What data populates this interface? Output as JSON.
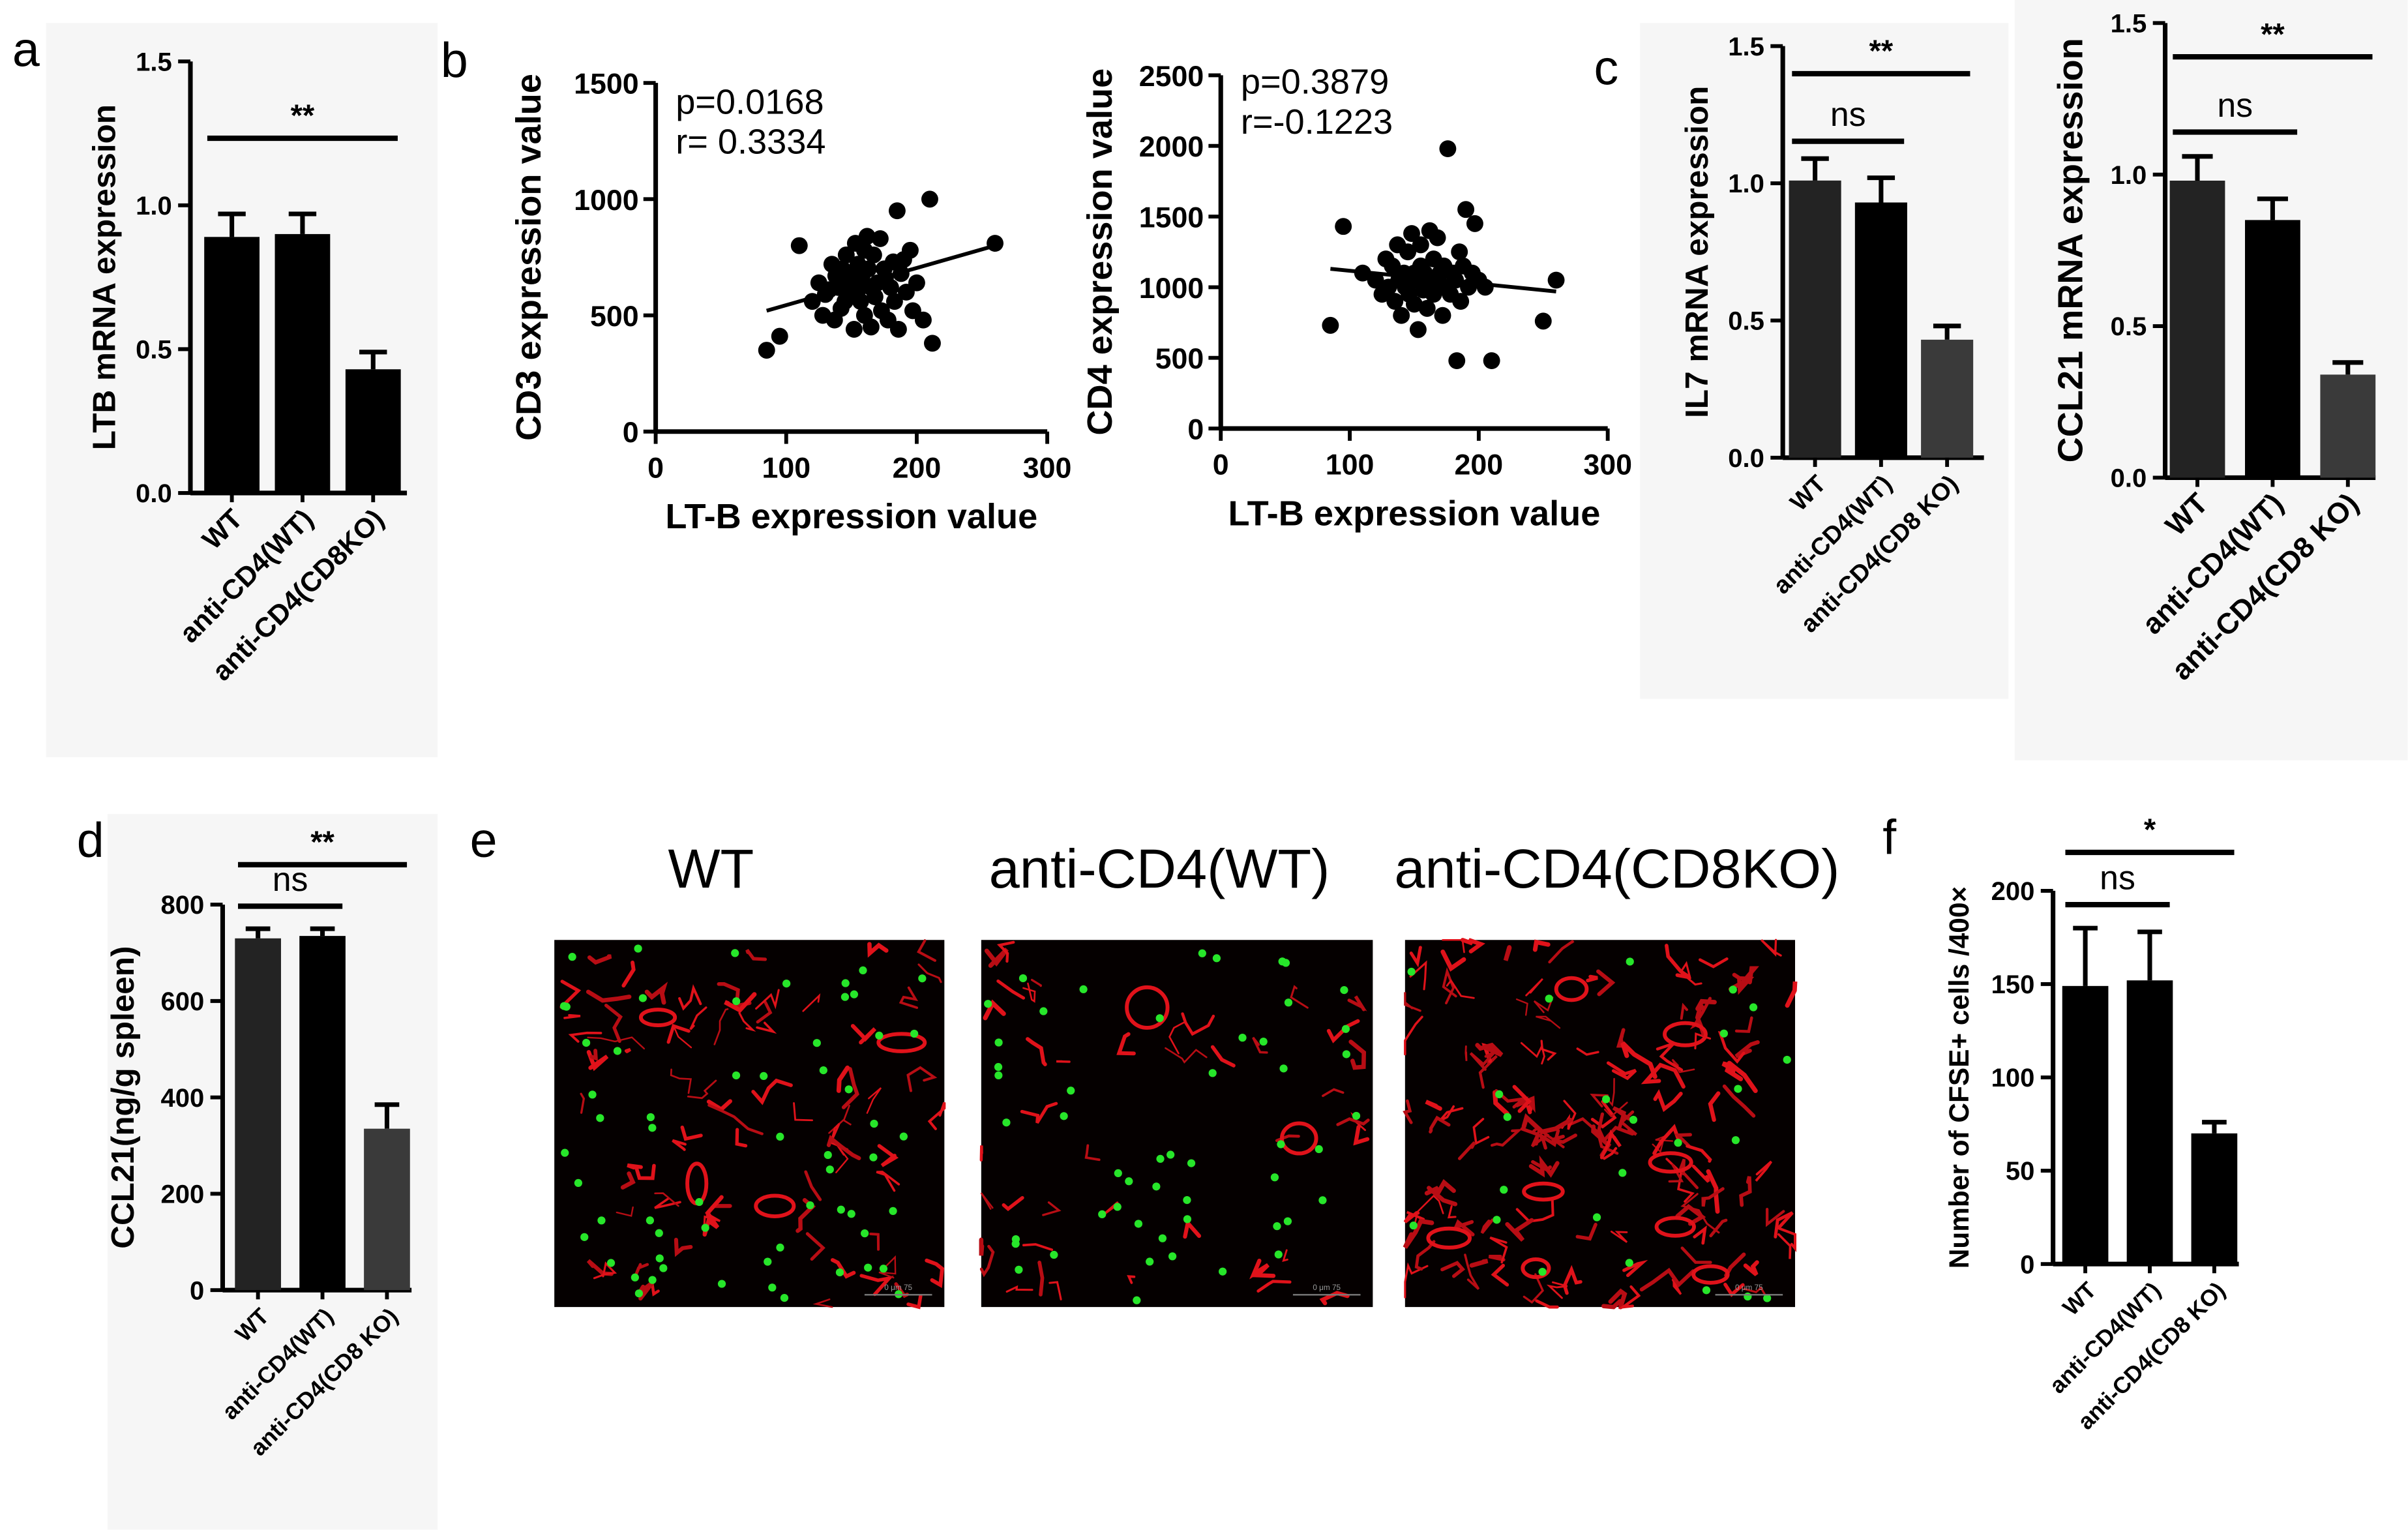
{
  "panels": {
    "a": "a",
    "b": "b",
    "c": "c",
    "d": "d",
    "e": "e",
    "f": "f"
  },
  "colors": {
    "black_bar": "#000000",
    "dark_bar": "#222222",
    "grey_bar": "#3a3a3a",
    "panel_bg": "#f5f5f5"
  },
  "chart_data": [
    {
      "id": "a",
      "type": "bar",
      "categories": [
        "WT",
        "anti-CD4(WT)",
        "anti-CD4(CD8KO)"
      ],
      "values": [
        0.89,
        0.9,
        0.43
      ],
      "errors": [
        0.08,
        0.07,
        0.06
      ],
      "ylabel": "LTB mRNA expression",
      "ylim": [
        0,
        1.5
      ],
      "yticks": [
        "0.0",
        "0.5",
        "1.0",
        "1.5"
      ],
      "significance": [
        {
          "from": 0,
          "to": 2,
          "label": "**"
        }
      ]
    },
    {
      "id": "b1",
      "type": "scatter",
      "xlabel": "LT-B expression value",
      "ylabel": "CD3 expression value",
      "xlim": [
        0,
        300
      ],
      "ylim": [
        0,
        1500
      ],
      "xticks": [
        "0",
        "100",
        "200",
        "300"
      ],
      "yticks": [
        "0",
        "500",
        "1000",
        "1500"
      ],
      "annotation": [
        "p=0.0168",
        "r= 0.3334"
      ],
      "fit": [
        [
          85,
          520
        ],
        [
          260,
          800
        ]
      ],
      "points": [
        [
          85,
          350
        ],
        [
          95,
          410
        ],
        [
          110,
          800
        ],
        [
          120,
          560
        ],
        [
          125,
          640
        ],
        [
          128,
          500
        ],
        [
          130,
          590
        ],
        [
          133,
          610
        ],
        [
          135,
          720
        ],
        [
          137,
          480
        ],
        [
          138,
          670
        ],
        [
          140,
          620
        ],
        [
          142,
          530
        ],
        [
          143,
          700
        ],
        [
          145,
          560
        ],
        [
          146,
          760
        ],
        [
          148,
          640
        ],
        [
          150,
          590
        ],
        [
          150,
          680
        ],
        [
          152,
          440
        ],
        [
          153,
          810
        ],
        [
          155,
          720
        ],
        [
          155,
          610
        ],
        [
          157,
          560
        ],
        [
          158,
          660
        ],
        [
          160,
          780
        ],
        [
          160,
          500
        ],
        [
          162,
          840
        ],
        [
          163,
          700
        ],
        [
          165,
          620
        ],
        [
          165,
          450
        ],
        [
          167,
          760
        ],
        [
          168,
          580
        ],
        [
          170,
          640
        ],
        [
          172,
          830
        ],
        [
          173,
          520
        ],
        [
          175,
          700
        ],
        [
          176,
          660
        ],
        [
          178,
          480
        ],
        [
          180,
          620
        ],
        [
          182,
          730
        ],
        [
          183,
          560
        ],
        [
          185,
          950
        ],
        [
          186,
          440
        ],
        [
          188,
          680
        ],
        [
          190,
          740
        ],
        [
          192,
          600
        ],
        [
          195,
          780
        ],
        [
          197,
          520
        ],
        [
          200,
          640
        ],
        [
          205,
          480
        ],
        [
          210,
          1000
        ],
        [
          212,
          380
        ],
        [
          260,
          810
        ]
      ]
    },
    {
      "id": "b2",
      "type": "scatter",
      "xlabel": "LT-B expression value",
      "ylabel": "CD4 expression value",
      "xlim": [
        0,
        300
      ],
      "ylim": [
        0,
        2500
      ],
      "xticks": [
        "0",
        "100",
        "200",
        "300"
      ],
      "yticks": [
        "0",
        "500",
        "1000",
        "1500",
        "2000",
        "2500"
      ],
      "annotation": [
        "p=0.3879",
        "r=-0.1223"
      ],
      "fit": [
        [
          85,
          1130
        ],
        [
          260,
          970
        ]
      ],
      "points": [
        [
          85,
          730
        ],
        [
          95,
          1430
        ],
        [
          110,
          1100
        ],
        [
          120,
          1050
        ],
        [
          125,
          950
        ],
        [
          128,
          1200
        ],
        [
          130,
          1000
        ],
        [
          133,
          1150
        ],
        [
          135,
          900
        ],
        [
          137,
          1300
        ],
        [
          138,
          1050
        ],
        [
          140,
          800
        ],
        [
          142,
          1100
        ],
        [
          143,
          1000
        ],
        [
          145,
          1250
        ],
        [
          146,
          950
        ],
        [
          148,
          1380
        ],
        [
          150,
          1100
        ],
        [
          150,
          880
        ],
        [
          152,
          1050
        ],
        [
          153,
          700
        ],
        [
          155,
          1300
        ],
        [
          155,
          1150
        ],
        [
          157,
          980
        ],
        [
          158,
          1100
        ],
        [
          160,
          1050
        ],
        [
          160,
          850
        ],
        [
          162,
          1400
        ],
        [
          163,
          1000
        ],
        [
          165,
          1200
        ],
        [
          165,
          950
        ],
        [
          167,
          1050
        ],
        [
          168,
          1350
        ],
        [
          170,
          1100
        ],
        [
          172,
          800
        ],
        [
          173,
          1150
        ],
        [
          175,
          1000
        ],
        [
          176,
          1980
        ],
        [
          178,
          950
        ],
        [
          180,
          1100
        ],
        [
          182,
          1050
        ],
        [
          183,
          480
        ],
        [
          185,
          1250
        ],
        [
          186,
          900
        ],
        [
          188,
          1150
        ],
        [
          190,
          1550
        ],
        [
          192,
          1000
        ],
        [
          195,
          1100
        ],
        [
          197,
          1450
        ],
        [
          200,
          1050
        ],
        [
          205,
          1000
        ],
        [
          210,
          480
        ],
        [
          250,
          760
        ],
        [
          260,
          1050
        ]
      ]
    },
    {
      "id": "c1",
      "type": "bar",
      "categories": [
        "WT",
        "anti-CD4(WT)",
        "anti-CD4(CD8 KO)"
      ],
      "values": [
        1.01,
        0.93,
        0.43
      ],
      "errors": [
        0.08,
        0.09,
        0.05
      ],
      "ylabel": "IL7 mRNA expression",
      "ylim": [
        0,
        1.5
      ],
      "yticks": [
        "0.0",
        "0.5",
        "1.0",
        "1.5"
      ],
      "significance": [
        {
          "from": 0,
          "to": 1,
          "label": "ns"
        },
        {
          "from": 0,
          "to": 2,
          "label": "**"
        }
      ]
    },
    {
      "id": "c2",
      "type": "bar",
      "categories": [
        "WT",
        "anti-CD4(WT)",
        "anti-CD4(CD8 KO)"
      ],
      "values": [
        0.98,
        0.85,
        0.34
      ],
      "errors": [
        0.08,
        0.07,
        0.04
      ],
      "ylabel": "CCL21 mRNA expression",
      "ylim": [
        0,
        1.5
      ],
      "yticks": [
        "0.0",
        "0.5",
        "1.0",
        "1.5"
      ],
      "significance": [
        {
          "from": 0,
          "to": 1,
          "label": "ns"
        },
        {
          "from": 0,
          "to": 2,
          "label": "**"
        }
      ]
    },
    {
      "id": "d",
      "type": "bar",
      "categories": [
        "WT",
        "anti-CD4(WT)",
        "anti-CD4(CD8 KO)"
      ],
      "values": [
        730,
        735,
        335
      ],
      "errors": [
        20,
        15,
        50
      ],
      "ylabel": "CCL21(ng/g spleen)",
      "ylim": [
        0,
        800
      ],
      "yticks": [
        "0",
        "200",
        "400",
        "600",
        "800"
      ],
      "significance": [
        {
          "from": 0,
          "to": 1,
          "label": "ns"
        },
        {
          "from": 0,
          "to": 2,
          "label": "**"
        }
      ]
    },
    {
      "id": "f",
      "type": "bar",
      "categories": [
        "WT",
        "anti-CD4(WT)",
        "anti-CD4(CD8 KO)"
      ],
      "values": [
        149,
        152,
        70
      ],
      "errors": [
        31,
        26,
        6
      ],
      "ylabel": "Number of CFSE+ cells /400×",
      "ylim": [
        0,
        200
      ],
      "yticks": [
        "0",
        "50",
        "100",
        "150",
        "200"
      ],
      "significance": [
        {
          "from": 0,
          "to": 1,
          "label": "ns"
        },
        {
          "from": 0,
          "to": 2,
          "label": "*"
        }
      ]
    }
  ],
  "micrographs": {
    "titles": [
      "WT",
      "anti-CD4(WT)",
      "anti-CD4(CD8KO)"
    ],
    "scale_label": "0   μm   75",
    "green_cell_density": [
      0.4,
      0.34,
      0.16
    ],
    "red_vessel_density": [
      0.55,
      0.3,
      1.0
    ]
  }
}
